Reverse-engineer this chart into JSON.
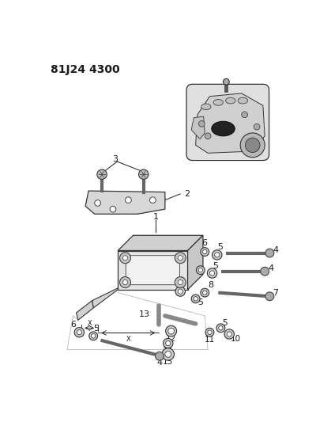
{
  "title": "81J24 4300",
  "bg_color": "#ffffff",
  "line_color": "#1a1a1a",
  "gray_dark": "#555555",
  "gray_mid": "#888888",
  "gray_light": "#cccccc",
  "title_fontsize": 10,
  "label_fontsize": 7.5
}
